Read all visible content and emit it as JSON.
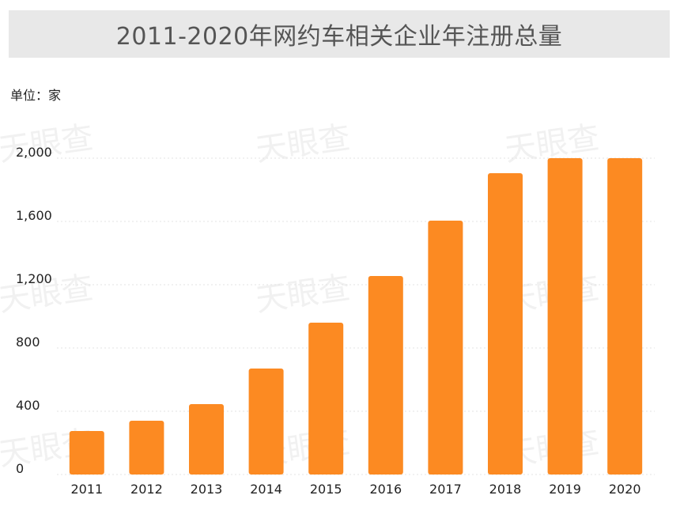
{
  "title": "2011-2020年网约车相关企业年注册总量",
  "unit_label": "单位：家",
  "watermark": "天眼查",
  "chart_data": {
    "type": "bar",
    "categories": [
      "2011",
      "2012",
      "2013",
      "2014",
      "2015",
      "2016",
      "2017",
      "2018",
      "2019",
      "2020"
    ],
    "values": [
      275,
      340,
      445,
      670,
      960,
      1255,
      1605,
      1905,
      2000,
      2000
    ],
    "ylim": [
      0,
      2000
    ],
    "yticks": [
      0,
      400,
      800,
      1200,
      1600,
      2000
    ],
    "ytick_labels": [
      "0",
      "400",
      "800",
      "1,200",
      "1,600",
      "2,000"
    ],
    "grid": true,
    "bar_color": "#fc8a22"
  }
}
